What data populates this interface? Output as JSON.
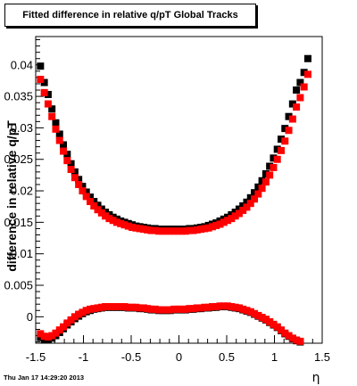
{
  "chart_data": {
    "type": "scatter",
    "title": "Fitted difference in relative q/pT  Global Tracks",
    "xlabel": "η",
    "ylabel": "difference in relative q/pT",
    "xlim": [
      -1.5,
      1.5
    ],
    "ylim": [
      -0.0042,
      0.0445
    ],
    "x_ticks": [
      -1.5,
      -1,
      -0.5,
      0,
      0.5,
      1,
      1.5
    ],
    "x_tick_labels": [
      "-1.5",
      "-1",
      "-0.5",
      "0",
      "0.5",
      "1",
      "1.5"
    ],
    "y_ticks": [
      0,
      0.005,
      0.01,
      0.015,
      0.02,
      0.025,
      0.03,
      0.035,
      0.04
    ],
    "y_tick_labels": [
      "0",
      "0.005",
      "0.01",
      "0.015",
      "0.02",
      "0.025",
      "0.03",
      "0.035",
      "0.04"
    ],
    "grid": false,
    "legend": "none",
    "footer_text": "Thu Jan 17 14:29:20 2013",
    "series": [
      {
        "color": "#000000",
        "points": [
          [
            -1.45,
            0.0398
          ],
          [
            -1.41,
            0.0372
          ],
          [
            -1.37,
            0.0353
          ],
          [
            -1.33,
            0.033
          ],
          [
            -1.29,
            0.0308
          ],
          [
            -1.25,
            0.029
          ],
          [
            -1.21,
            0.0273
          ],
          [
            -1.17,
            0.0258
          ],
          [
            -1.13,
            0.0243
          ],
          [
            -1.09,
            0.023
          ],
          [
            -1.05,
            0.0218
          ],
          [
            -1.01,
            0.0207
          ],
          [
            -0.97,
            0.0198
          ],
          [
            -0.93,
            0.019
          ],
          [
            -0.89,
            0.0183
          ],
          [
            -0.85,
            0.0177
          ],
          [
            -0.81,
            0.0171
          ],
          [
            -0.77,
            0.0166
          ],
          [
            -0.73,
            0.0162
          ],
          [
            -0.69,
            0.0158
          ],
          [
            -0.65,
            0.0155
          ],
          [
            -0.61,
            0.0152
          ],
          [
            -0.57,
            0.015
          ],
          [
            -0.53,
            0.0148
          ],
          [
            -0.49,
            0.0146
          ],
          [
            -0.45,
            0.0144
          ],
          [
            -0.41,
            0.0143
          ],
          [
            -0.37,
            0.0142
          ],
          [
            -0.33,
            0.0141
          ],
          [
            -0.29,
            0.014
          ],
          [
            -0.25,
            0.014
          ],
          [
            -0.21,
            0.0139
          ],
          [
            -0.17,
            0.0139
          ],
          [
            -0.13,
            0.0139
          ],
          [
            -0.09,
            0.0139
          ],
          [
            -0.05,
            0.0139
          ],
          [
            -0.01,
            0.0139
          ],
          [
            0.03,
            0.0139
          ],
          [
            0.07,
            0.0139
          ],
          [
            0.11,
            0.014
          ],
          [
            0.15,
            0.014
          ],
          [
            0.19,
            0.0141
          ],
          [
            0.23,
            0.0142
          ],
          [
            0.27,
            0.0143
          ],
          [
            0.31,
            0.0145
          ],
          [
            0.35,
            0.0147
          ],
          [
            0.39,
            0.0149
          ],
          [
            0.43,
            0.0152
          ],
          [
            0.47,
            0.0155
          ],
          [
            0.51,
            0.0158
          ],
          [
            0.55,
            0.0162
          ],
          [
            0.59,
            0.0166
          ],
          [
            0.63,
            0.0171
          ],
          [
            0.67,
            0.0176
          ],
          [
            0.71,
            0.0182
          ],
          [
            0.75,
            0.0189
          ],
          [
            0.79,
            0.0197
          ],
          [
            0.83,
            0.0206
          ],
          [
            0.87,
            0.0216
          ],
          [
            0.91,
            0.0227
          ],
          [
            0.95,
            0.0239
          ],
          [
            0.99,
            0.0252
          ],
          [
            1.03,
            0.0266
          ],
          [
            1.07,
            0.0282
          ],
          [
            1.11,
            0.0299
          ],
          [
            1.15,
            0.0318
          ],
          [
            1.19,
            0.0338
          ],
          [
            1.23,
            0.036
          ],
          [
            1.27,
            0.0372
          ],
          [
            1.31,
            0.0388
          ],
          [
            1.35,
            0.041
          ],
          [
            -1.45,
            -0.0033
          ],
          [
            -1.41,
            -0.0036
          ],
          [
            -1.37,
            -0.0037
          ],
          [
            -1.33,
            -0.0034
          ],
          [
            -1.29,
            -0.003
          ],
          [
            -1.25,
            -0.0025
          ],
          [
            -1.21,
            -0.0019
          ],
          [
            -1.17,
            -0.0013
          ],
          [
            -1.13,
            -0.0008
          ],
          [
            -1.09,
            -0.0003
          ],
          [
            -1.05,
            0.0001
          ],
          [
            -1.01,
            0.0005
          ],
          [
            -0.97,
            0.0008
          ],
          [
            -0.93,
            0.001
          ],
          [
            -0.89,
            0.0012
          ],
          [
            -0.85,
            0.0013
          ],
          [
            -0.81,
            0.0014
          ],
          [
            -0.77,
            0.0015
          ],
          [
            -0.73,
            0.0015
          ],
          [
            -0.69,
            0.0015
          ],
          [
            -0.65,
            0.0015
          ],
          [
            -0.61,
            0.0015
          ],
          [
            -0.57,
            0.0015
          ],
          [
            -0.53,
            0.0014
          ],
          [
            -0.49,
            0.0014
          ],
          [
            -0.45,
            0.0014
          ],
          [
            -0.41,
            0.0013
          ],
          [
            -0.37,
            0.0013
          ],
          [
            -0.33,
            0.0012
          ],
          [
            -0.29,
            0.0011
          ],
          [
            -0.25,
            0.0011
          ],
          [
            -0.21,
            0.001
          ],
          [
            -0.17,
            0.001
          ],
          [
            -0.13,
            0.001
          ],
          [
            -0.09,
            0.001
          ],
          [
            -0.05,
            0.0011
          ],
          [
            -0.01,
            0.0011
          ],
          [
            0.03,
            0.0011
          ],
          [
            0.07,
            0.0011
          ],
          [
            0.11,
            0.0012
          ],
          [
            0.15,
            0.0012
          ],
          [
            0.19,
            0.0013
          ],
          [
            0.23,
            0.0013
          ],
          [
            0.27,
            0.0014
          ],
          [
            0.31,
            0.0014
          ],
          [
            0.35,
            0.0015
          ],
          [
            0.39,
            0.0015
          ],
          [
            0.43,
            0.0016
          ],
          [
            0.47,
            0.0016
          ],
          [
            0.51,
            0.0016
          ],
          [
            0.55,
            0.0015
          ],
          [
            0.59,
            0.0014
          ],
          [
            0.63,
            0.0013
          ],
          [
            0.67,
            0.0011
          ],
          [
            0.71,
            0.0009
          ],
          [
            0.75,
            0.0007
          ],
          [
            0.79,
            0.0004
          ],
          [
            0.83,
            0.0001
          ],
          [
            0.87,
            -0.0002
          ],
          [
            0.91,
            -0.0005
          ],
          [
            0.95,
            -0.0009
          ],
          [
            0.99,
            -0.0013
          ],
          [
            1.03,
            -0.0017
          ],
          [
            1.07,
            -0.0022
          ],
          [
            1.11,
            -0.0027
          ],
          [
            1.15,
            -0.0031
          ],
          [
            1.19,
            -0.0035
          ],
          [
            1.23,
            -0.0038
          ],
          [
            1.27,
            -0.004
          ]
        ]
      },
      {
        "color": "#ff0000",
        "points": [
          [
            -1.45,
            0.0377
          ],
          [
            -1.41,
            0.0356
          ],
          [
            -1.37,
            0.0338
          ],
          [
            -1.33,
            0.0318
          ],
          [
            -1.29,
            0.0298
          ],
          [
            -1.25,
            0.028
          ],
          [
            -1.21,
            0.0263
          ],
          [
            -1.17,
            0.0248
          ],
          [
            -1.13,
            0.0234
          ],
          [
            -1.09,
            0.0221
          ],
          [
            -1.05,
            0.021
          ],
          [
            -1.01,
            0.02
          ],
          [
            -0.97,
            0.0191
          ],
          [
            -0.93,
            0.0183
          ],
          [
            -0.89,
            0.0176
          ],
          [
            -0.85,
            0.017
          ],
          [
            -0.81,
            0.0165
          ],
          [
            -0.77,
            0.016
          ],
          [
            -0.73,
            0.0156
          ],
          [
            -0.69,
            0.0153
          ],
          [
            -0.65,
            0.015
          ],
          [
            -0.61,
            0.0148
          ],
          [
            -0.57,
            0.0146
          ],
          [
            -0.53,
            0.0144
          ],
          [
            -0.49,
            0.0142
          ],
          [
            -0.45,
            0.0141
          ],
          [
            -0.41,
            0.014
          ],
          [
            -0.37,
            0.0139
          ],
          [
            -0.33,
            0.0138
          ],
          [
            -0.29,
            0.0137
          ],
          [
            -0.25,
            0.0137
          ],
          [
            -0.21,
            0.0136
          ],
          [
            -0.17,
            0.0136
          ],
          [
            -0.13,
            0.0136
          ],
          [
            -0.09,
            0.0136
          ],
          [
            -0.05,
            0.0136
          ],
          [
            -0.01,
            0.0136
          ],
          [
            0.03,
            0.0136
          ],
          [
            0.07,
            0.0136
          ],
          [
            0.11,
            0.0137
          ],
          [
            0.15,
            0.0137
          ],
          [
            0.19,
            0.0138
          ],
          [
            0.23,
            0.0139
          ],
          [
            0.27,
            0.014
          ],
          [
            0.31,
            0.0141
          ],
          [
            0.35,
            0.0143
          ],
          [
            0.39,
            0.0145
          ],
          [
            0.43,
            0.0147
          ],
          [
            0.47,
            0.015
          ],
          [
            0.51,
            0.0153
          ],
          [
            0.55,
            0.0156
          ],
          [
            0.59,
            0.016
          ],
          [
            0.63,
            0.0164
          ],
          [
            0.67,
            0.0169
          ],
          [
            0.71,
            0.0174
          ],
          [
            0.75,
            0.018
          ],
          [
            0.79,
            0.0187
          ],
          [
            0.83,
            0.0195
          ],
          [
            0.87,
            0.0204
          ],
          [
            0.91,
            0.0214
          ],
          [
            0.95,
            0.0225
          ],
          [
            0.99,
            0.0237
          ],
          [
            1.03,
            0.025
          ],
          [
            1.07,
            0.0264
          ],
          [
            1.11,
            0.0279
          ],
          [
            1.15,
            0.0296
          ],
          [
            1.19,
            0.0314
          ],
          [
            1.23,
            0.0333
          ],
          [
            1.27,
            0.0348
          ],
          [
            1.31,
            0.0365
          ],
          [
            1.35,
            0.0385
          ],
          [
            -1.45,
            -0.0027
          ],
          [
            -1.41,
            -0.0031
          ],
          [
            -1.37,
            -0.0032
          ],
          [
            -1.33,
            -0.003
          ],
          [
            -1.29,
            -0.0026
          ],
          [
            -1.25,
            -0.0021
          ],
          [
            -1.21,
            -0.0016
          ],
          [
            -1.17,
            -0.001
          ],
          [
            -1.13,
            -0.0005
          ],
          [
            -1.09,
            0.0
          ],
          [
            -1.05,
            0.0004
          ],
          [
            -1.01,
            0.0007
          ],
          [
            -0.97,
            0.001
          ],
          [
            -0.93,
            0.0012
          ],
          [
            -0.89,
            0.0013
          ],
          [
            -0.85,
            0.0014
          ],
          [
            -0.81,
            0.0015
          ],
          [
            -0.77,
            0.0016
          ],
          [
            -0.73,
            0.0016
          ],
          [
            -0.69,
            0.0016
          ],
          [
            -0.65,
            0.0016
          ],
          [
            -0.61,
            0.0016
          ],
          [
            -0.57,
            0.0016
          ],
          [
            -0.53,
            0.0015
          ],
          [
            -0.49,
            0.0015
          ],
          [
            -0.45,
            0.0015
          ],
          [
            -0.41,
            0.0014
          ],
          [
            -0.37,
            0.0014
          ],
          [
            -0.33,
            0.0013
          ],
          [
            -0.29,
            0.0012
          ],
          [
            -0.25,
            0.0012
          ],
          [
            -0.21,
            0.0011
          ],
          [
            -0.17,
            0.0011
          ],
          [
            -0.13,
            0.0011
          ],
          [
            -0.09,
            0.0011
          ],
          [
            -0.05,
            0.0012
          ],
          [
            -0.01,
            0.0012
          ],
          [
            0.03,
            0.0012
          ],
          [
            0.07,
            0.0012
          ],
          [
            0.11,
            0.0013
          ],
          [
            0.15,
            0.0013
          ],
          [
            0.19,
            0.0014
          ],
          [
            0.23,
            0.0014
          ],
          [
            0.27,
            0.0015
          ],
          [
            0.31,
            0.0015
          ],
          [
            0.35,
            0.0016
          ],
          [
            0.39,
            0.0016
          ],
          [
            0.43,
            0.0017
          ],
          [
            0.47,
            0.0017
          ],
          [
            0.51,
            0.0017
          ],
          [
            0.55,
            0.0016
          ],
          [
            0.59,
            0.0015
          ],
          [
            0.63,
            0.0014
          ],
          [
            0.67,
            0.0012
          ],
          [
            0.71,
            0.001
          ],
          [
            0.75,
            0.0008
          ],
          [
            0.79,
            0.0005
          ],
          [
            0.83,
            0.0002
          ],
          [
            0.87,
            -0.0001
          ],
          [
            0.91,
            -0.0004
          ],
          [
            0.95,
            -0.0008
          ],
          [
            0.99,
            -0.0012
          ],
          [
            1.03,
            -0.0016
          ],
          [
            1.07,
            -0.0021
          ],
          [
            1.11,
            -0.0026
          ],
          [
            1.15,
            -0.003
          ],
          [
            1.19,
            -0.0034
          ],
          [
            1.23,
            -0.0037
          ],
          [
            1.27,
            -0.0039
          ]
        ]
      }
    ]
  }
}
